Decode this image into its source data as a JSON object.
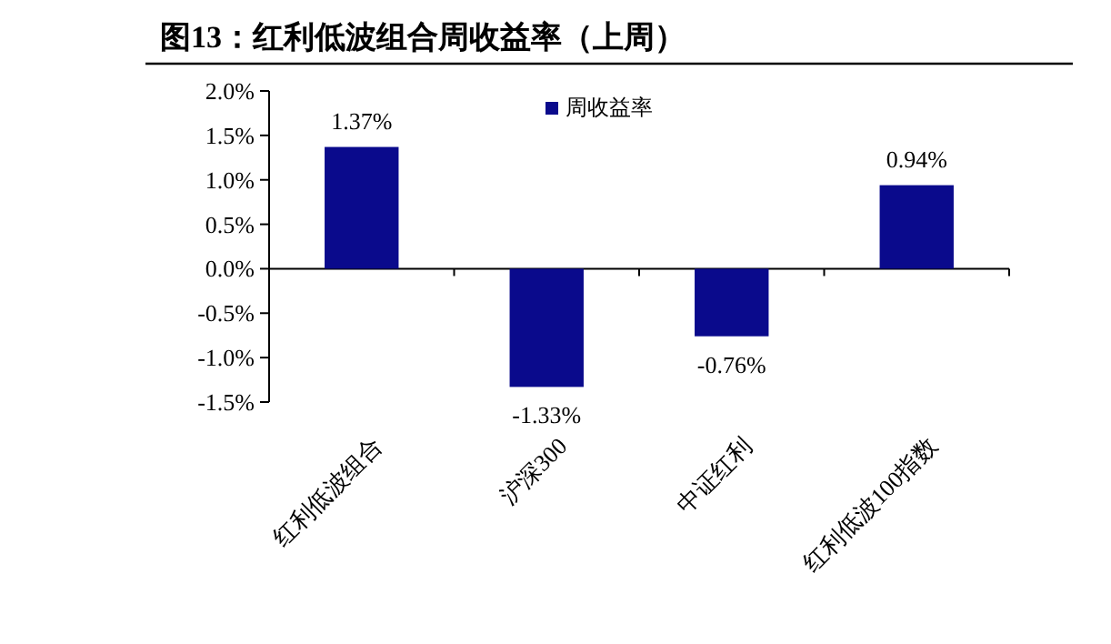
{
  "chart_data": {
    "type": "bar",
    "title": "图13：红利低波组合周收益率（上周）",
    "categories": [
      "红利低波组合",
      "沪深300",
      "中证红利",
      "红利低波100指数"
    ],
    "series": [
      {
        "name": "周收益率",
        "color": "#0a0a8c",
        "values": [
          1.37,
          -1.33,
          -0.76,
          0.94
        ],
        "value_labels": [
          "1.37%",
          "-1.33%",
          "-0.76%",
          "0.94%"
        ]
      }
    ],
    "ylim": [
      -1.5,
      2.0
    ],
    "yticks": [
      {
        "value": -1.5,
        "label": "-1.5%"
      },
      {
        "value": -1.0,
        "label": "-1.0%"
      },
      {
        "value": -0.5,
        "label": "-0.5%"
      },
      {
        "value": 0,
        "label": "0.0%"
      },
      {
        "value": 0.5,
        "label": "0.5%"
      },
      {
        "value": 1.0,
        "label": "1.0%"
      },
      {
        "value": 1.5,
        "label": "1.5%"
      },
      {
        "value": 2.0,
        "label": "2.0%"
      }
    ],
    "legend": "top"
  }
}
